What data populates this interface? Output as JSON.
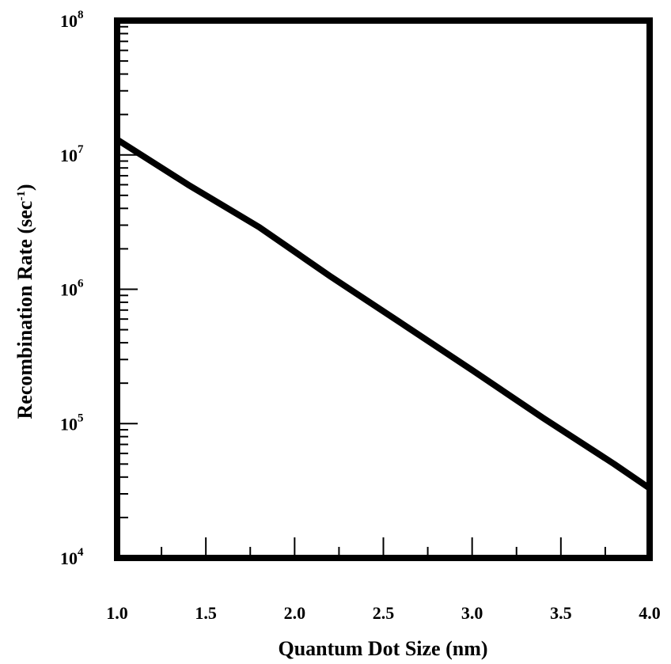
{
  "chart_data": {
    "type": "line",
    "xlabel": "Quantum Dot Size (nm)",
    "ylabel": {
      "main": "Recombination Rate (sec",
      "sup": "-1",
      "close": ")"
    },
    "xlim": [
      1.0,
      4.0
    ],
    "ylim": [
      10000,
      100000000
    ],
    "yscale": "log",
    "grid": false,
    "x_ticks": [
      "1.0",
      "1.5",
      "2.0",
      "2.5",
      "3.0",
      "3.5",
      "4.0"
    ],
    "y_ticks": [
      {
        "base": "10",
        "exp": "4"
      },
      {
        "base": "10",
        "exp": "5"
      },
      {
        "base": "10",
        "exp": "6"
      },
      {
        "base": "10",
        "exp": "7"
      },
      {
        "base": "10",
        "exp": "8"
      }
    ],
    "series": [
      {
        "x": [
          1.0,
          1.4,
          1.8,
          2.2,
          2.6,
          3.0,
          3.4,
          3.8,
          4.0
        ],
        "y": [
          13000000,
          6000000,
          2900000,
          1250000,
          560000,
          250000,
          110000,
          50000,
          33000
        ]
      }
    ]
  }
}
